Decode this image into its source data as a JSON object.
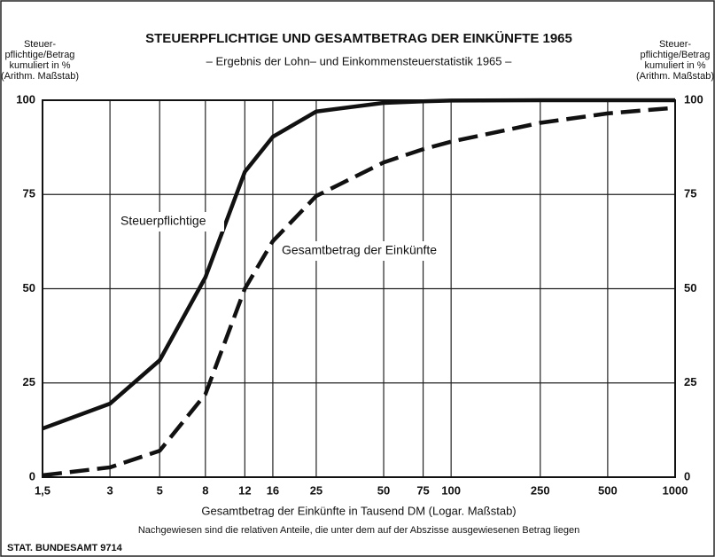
{
  "chart_data": {
    "type": "line",
    "title": "STEUERPFLICHTIGE UND GESAMTBETRAG DER EINKÜNFTE 1965",
    "subtitle": "– Ergebnis der Lohn– und Einkommensteuerstatistik 1965 –",
    "y_label": [
      "Steuer-",
      "pflichtige/Betrag",
      "kumuliert in %",
      "(Arithm. Maßstab)"
    ],
    "y2_label": [
      "Steuer-",
      "pflichtige/Betrag",
      "kumuliert in %",
      "(Arithm. Maßstab)"
    ],
    "x_label": "Gesamtbetrag der Einkünfte in Tausend DM (Logar. Maßstab)",
    "note": "Nachgewiesen sind die relativen Anteile, die unter dem auf der Abszisse ausgewiesenen Betrag liegen",
    "source": "STAT. BUNDESAMT 9714",
    "x": [
      1.5,
      3,
      5,
      8,
      12,
      16,
      25,
      50,
      75,
      100,
      250,
      500,
      1000
    ],
    "series": [
      {
        "name": "Steuerpflichtige",
        "color": "#111111",
        "style": "solid",
        "values": [
          12.9,
          19.5,
          31,
          53,
          81,
          90.3,
          97,
          99.3,
          99.7,
          99.9,
          100,
          100,
          100
        ]
      },
      {
        "name": "Gesamtbetrag der Einkünfte",
        "color": "#111111",
        "style": "dashed",
        "values": [
          0.5,
          2.6,
          7,
          22,
          50,
          62.6,
          74.6,
          83.5,
          87,
          89,
          94,
          96.5,
          98
        ]
      }
    ],
    "xscale": "log",
    "xlim": [
      1.5,
      1000
    ],
    "ylim": [
      0,
      100
    ],
    "xticks": [
      {
        "value": 1.5,
        "label": "1,5"
      },
      3,
      5,
      8,
      12,
      16,
      25,
      50,
      75,
      100,
      250,
      500,
      1000
    ],
    "yticks": [
      0,
      25,
      50,
      75,
      100
    ],
    "grid": true
  }
}
